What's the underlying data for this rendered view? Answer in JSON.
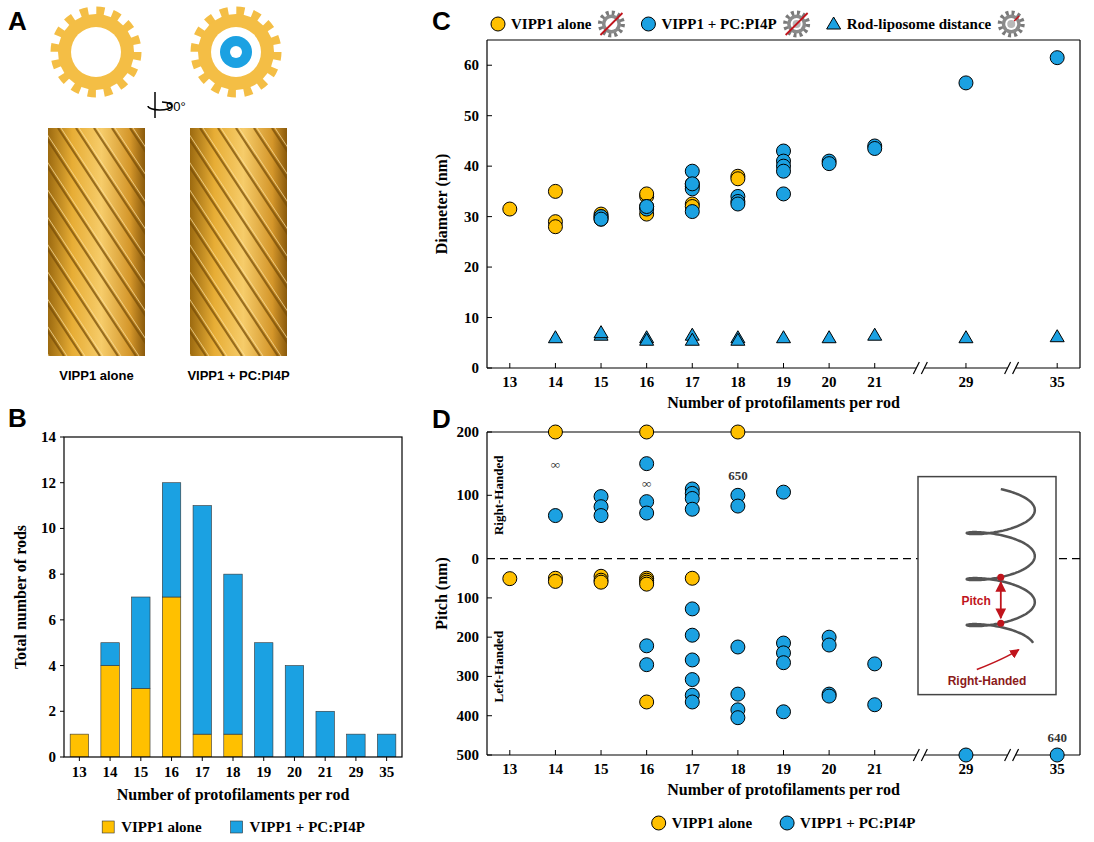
{
  "diagram": {
    "panel": "A",
    "rotation": "90°",
    "labels": [
      "VIPP1 alone",
      "VIPP1 + PC:PI4P"
    ]
  },
  "chart_data": [
    {
      "panel": "B",
      "type": "bar",
      "stacked": true,
      "grid": false,
      "legend": "bottom",
      "x_label": "Number of protofilaments per rod",
      "y_label": "Total number of rods",
      "categories": [
        13,
        14,
        15,
        16,
        17,
        18,
        19,
        20,
        21,
        29,
        35
      ],
      "ylim": [
        0,
        14
      ],
      "yticks": [
        0,
        2,
        4,
        6,
        8,
        10,
        12,
        14
      ],
      "series": [
        {
          "name": "VIPP1 alone",
          "color": "#FFC000",
          "values": [
            1,
            4,
            3,
            7,
            1,
            1,
            0,
            0,
            0,
            0,
            0
          ]
        },
        {
          "name": "VIPP1 + PC:PI4P",
          "color": "#1BA1E2",
          "values": [
            0,
            1,
            4,
            5,
            10,
            7,
            5,
            4,
            2,
            1,
            1
          ]
        }
      ]
    },
    {
      "panel": "C",
      "type": "scatter",
      "grid": false,
      "legend": "top",
      "x_label": "Number of protofilaments per rod",
      "y_label": "Diameter (nm)",
      "xlim": [
        12.5,
        35.5
      ],
      "xticks": [
        13,
        14,
        15,
        16,
        17,
        18,
        19,
        20,
        21,
        29,
        35
      ],
      "ylim": [
        0,
        65
      ],
      "yticks": [
        0,
        10,
        20,
        30,
        40,
        50,
        60
      ],
      "series": [
        {
          "name": "VIPP1 alone",
          "color": "#FFC000",
          "marker": "circle",
          "x": [
            13,
            14,
            14,
            14,
            15,
            15,
            15,
            16,
            16,
            16,
            16,
            17,
            17,
            17,
            18,
            18
          ],
          "values": [
            31.5,
            35,
            29,
            28,
            30.5,
            29.5,
            30,
            34,
            34.5,
            32,
            30.5,
            32.5,
            36.5,
            32,
            38,
            37.5
          ]
        },
        {
          "name": "VIPP1 + PC:PI4P",
          "color": "#1BA1E2",
          "marker": "circle",
          "x": [
            15,
            15,
            16,
            16,
            17,
            17,
            17,
            17,
            17,
            18,
            18,
            18,
            19,
            19,
            19,
            19,
            19,
            20,
            20,
            21,
            21,
            29,
            35
          ],
          "values": [
            30,
            29.5,
            31.5,
            32,
            39,
            36,
            35.5,
            31,
            36.5,
            34,
            33,
            32.5,
            43,
            41,
            40,
            39,
            34.5,
            41,
            40.5,
            44,
            43.5,
            56.5,
            61.5
          ]
        },
        {
          "name": "Rod-liposome distance",
          "color": "#1BA1E2",
          "marker": "triangle",
          "x": [
            14,
            15,
            15,
            16,
            16,
            17,
            17,
            18,
            18,
            19,
            20,
            21,
            29,
            35
          ],
          "values": [
            6,
            6.5,
            7,
            6,
            5.5,
            6.5,
            5.5,
            6,
            5.5,
            6,
            6,
            6.5,
            6,
            6.2
          ]
        }
      ]
    },
    {
      "panel": "D",
      "type": "scatter",
      "grid": false,
      "legend": "bottom",
      "x_label": "Number of protofilaments per rod",
      "y_label": "Pitch (nm)",
      "y_section_label": "Right-Handed",
      "y2_section_label": "Left-Handed",
      "xlim": [
        12.5,
        35.5
      ],
      "xticks": [
        13,
        14,
        15,
        16,
        17,
        18,
        19,
        20,
        21,
        29,
        35
      ],
      "ylim": [
        0,
        200
      ],
      "yticks": [
        0,
        100,
        200
      ],
      "y2lim": [
        0,
        500
      ],
      "y2ticks": [
        100,
        200,
        300,
        400,
        500
      ],
      "series": [
        {
          "name": "VIPP1 alone",
          "color": "#FFC000",
          "marker": "circle",
          "x": [
            14,
            16,
            18
          ],
          "values": [
            200,
            200,
            200
          ]
        },
        {
          "name": "VIPP1 + PC:PI4P",
          "color": "#1BA1E2",
          "marker": "circle",
          "x": [
            14,
            15,
            15,
            15,
            16,
            16,
            16,
            17,
            17,
            17,
            17,
            18,
            18,
            19
          ],
          "values": [
            68,
            98,
            82,
            68,
            150,
            90,
            72,
            110,
            103,
            95,
            78,
            100,
            83,
            105
          ]
        },
        {
          "name": "VIPP1 alone",
          "color": "#FFC000",
          "marker": "circle",
          "axis": "y2",
          "x": [
            13,
            14,
            14,
            15,
            15,
            15,
            16,
            16,
            16,
            16,
            16,
            17
          ],
          "values": [
            51,
            50,
            58,
            45,
            55,
            60,
            50,
            55,
            60,
            65,
            365,
            50
          ]
        },
        {
          "name": "VIPP1 + PC:PI4P",
          "color": "#1BA1E2",
          "marker": "circle",
          "axis": "y2",
          "x": [
            16,
            16,
            17,
            17,
            17,
            17,
            17,
            17,
            18,
            18,
            18,
            18,
            19,
            19,
            19,
            19,
            20,
            20,
            20,
            20,
            21,
            21,
            29,
            35
          ],
          "values": [
            222,
            270,
            128,
            195,
            258,
            308,
            348,
            365,
            225,
            345,
            385,
            405,
            215,
            240,
            265,
            390,
            200,
            220,
            345,
            350,
            268,
            372,
            500,
            500
          ]
        }
      ],
      "annotations": [
        {
          "text": "∞",
          "x": 14,
          "value": 150
        },
        {
          "text": "∞",
          "x": 16,
          "value": 120
        },
        {
          "text": "650",
          "x": 18,
          "value": 132
        },
        {
          "text": "640",
          "x": 35,
          "value": 455,
          "axis": "y2"
        }
      ],
      "inset": {
        "labels": [
          "Pitch",
          "Right-Handed"
        ]
      }
    }
  ]
}
